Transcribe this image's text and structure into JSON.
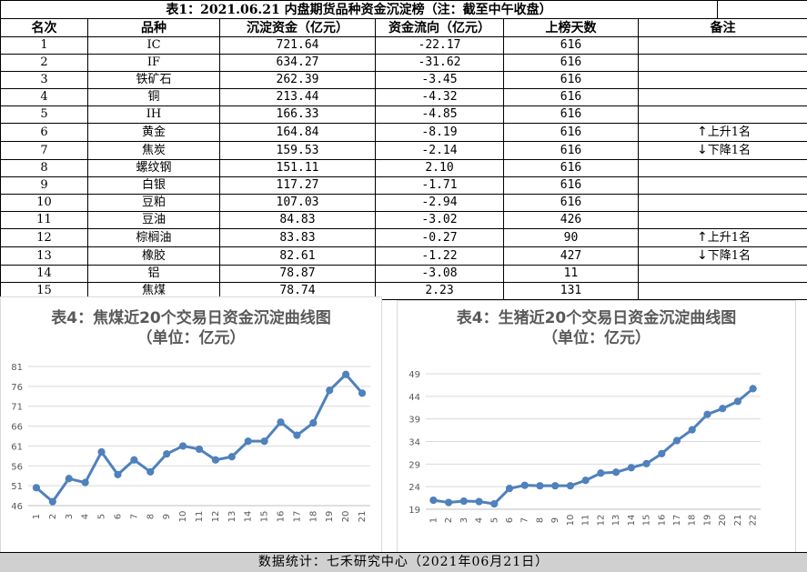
{
  "table": {
    "title": "表1：2021.06.21 内盘期货品种资金沉淀榜（注：截至中午收盘）",
    "headers": [
      "名次",
      "品种",
      "沉淀资金（亿元）",
      "资金流向（亿元）",
      "上榜天数",
      "",
      "备注"
    ],
    "rows": [
      {
        "rank": "1",
        "name": "IC",
        "capital": "721.64",
        "flow": "-22.17",
        "days": "616",
        "note": ""
      },
      {
        "rank": "2",
        "name": "IF",
        "capital": "634.27",
        "flow": "-31.62",
        "days": "616",
        "note": ""
      },
      {
        "rank": "3",
        "name": "铁矿石",
        "capital": "262.39",
        "flow": "-3.45",
        "days": "616",
        "note": ""
      },
      {
        "rank": "4",
        "name": "铜",
        "capital": "213.44",
        "flow": "-4.32",
        "days": "616",
        "note": ""
      },
      {
        "rank": "5",
        "name": "IH",
        "capital": "166.33",
        "flow": "-4.85",
        "days": "616",
        "note": ""
      },
      {
        "rank": "6",
        "name": "黄金",
        "capital": "164.84",
        "flow": "-8.19",
        "days": "616",
        "note": "上升1名",
        "dir": "up"
      },
      {
        "rank": "7",
        "name": "焦炭",
        "capital": "159.53",
        "flow": "-2.14",
        "days": "616",
        "note": "下降1名",
        "dir": "down"
      },
      {
        "rank": "8",
        "name": "螺纹钢",
        "capital": "151.11",
        "flow": "2.10",
        "days": "616",
        "note": ""
      },
      {
        "rank": "9",
        "name": "白银",
        "capital": "117.27",
        "flow": "-1.71",
        "days": "616",
        "note": ""
      },
      {
        "rank": "10",
        "name": "豆粕",
        "capital": "107.03",
        "flow": "-2.94",
        "days": "616",
        "note": ""
      },
      {
        "rank": "11",
        "name": "豆油",
        "capital": "84.83",
        "flow": "-3.02",
        "days": "426",
        "note": ""
      },
      {
        "rank": "12",
        "name": "棕榈油",
        "capital": "83.83",
        "flow": "-0.27",
        "days": "90",
        "note": "上升1名",
        "dir": "up"
      },
      {
        "rank": "13",
        "name": "橡胶",
        "capital": "82.61",
        "flow": "-1.22",
        "days": "427",
        "note": "下降1名",
        "dir": "down"
      },
      {
        "rank": "14",
        "name": "铝",
        "capital": "78.87",
        "flow": "-3.08",
        "days": "11",
        "note": ""
      },
      {
        "rank": "15",
        "name": "焦煤",
        "capital": "78.74",
        "flow": "2.23",
        "days": "131",
        "note": ""
      }
    ]
  },
  "chart_data": [
    {
      "type": "line",
      "title": "表4：焦煤近20个交易日资金沉淀曲线图",
      "subtitle": "（单位：亿元）",
      "x": [
        "1",
        "2",
        "3",
        "4",
        "5",
        "6",
        "7",
        "8",
        "9",
        "10",
        "11",
        "12",
        "13",
        "14",
        "15",
        "16",
        "17",
        "18",
        "19",
        "20",
        "21"
      ],
      "values": [
        50.5,
        47.0,
        52.8,
        51.8,
        59.5,
        53.8,
        57.5,
        54.5,
        59.0,
        61.0,
        60.2,
        57.5,
        58.3,
        62.2,
        62.2,
        67.0,
        63.7,
        66.8,
        75.0,
        79.0,
        74.3
      ],
      "yticks": [
        46,
        51,
        56,
        61,
        66,
        71,
        76,
        81
      ],
      "ylim": [
        46,
        81
      ],
      "color": "#4f81bd"
    },
    {
      "type": "line",
      "title": "表4：生猪近20个交易日资金沉淀曲线图",
      "subtitle": "（单位：亿元）",
      "x": [
        "1",
        "2",
        "3",
        "4",
        "5",
        "6",
        "7",
        "8",
        "9",
        "10",
        "11",
        "12",
        "13",
        "14",
        "15",
        "16",
        "17",
        "18",
        "19",
        "20",
        "21",
        "22"
      ],
      "values": [
        21.0,
        20.5,
        20.8,
        20.7,
        20.2,
        23.6,
        24.3,
        24.2,
        24.2,
        24.2,
        25.4,
        27.0,
        27.2,
        28.2,
        29.1,
        31.3,
        34.2,
        36.6,
        40.0,
        41.3,
        42.9,
        45.7
      ],
      "yticks": [
        19,
        24,
        29,
        34,
        39,
        44,
        49
      ],
      "ylim": [
        19,
        49
      ],
      "color": "#4f81bd"
    }
  ],
  "footer": {
    "text": "数据统计：七禾研究中心（2021年06月21日）"
  },
  "icons": {
    "up": "up-arrow-icon",
    "down": "down-arrow-icon"
  }
}
